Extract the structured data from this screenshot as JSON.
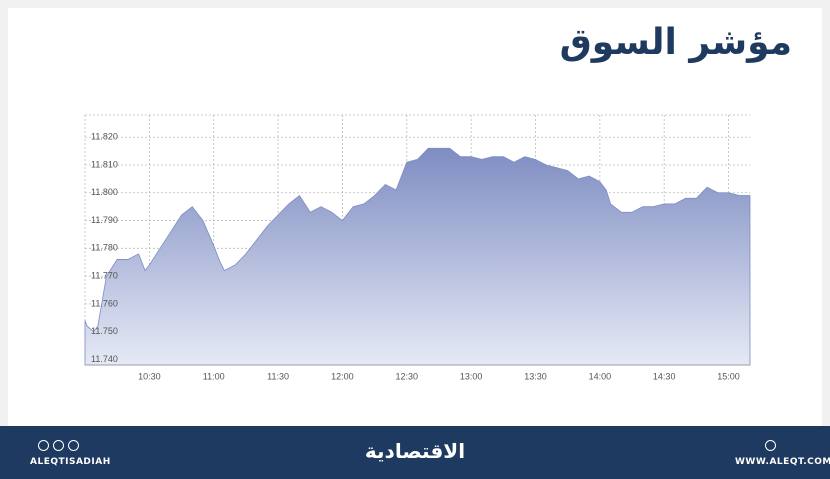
{
  "header": {
    "title": "مؤشر السوق"
  },
  "footer": {
    "handle": "ALEQTISADIAH",
    "brand": "الاقتصادية",
    "website": "WWW.ALEQT.COM"
  },
  "chart_data": {
    "type": "area",
    "color": "#7e8dc2",
    "grid": true,
    "x": [
      "10:00",
      "10:01",
      "10:04",
      "10:06",
      "10:10",
      "10:15",
      "10:20",
      "10:25",
      "10:28",
      "10:30",
      "10:35",
      "10:40",
      "10:45",
      "10:50",
      "10:55",
      "11:00",
      "11:03",
      "11:05",
      "11:10",
      "11:15",
      "11:20",
      "11:25",
      "11:30",
      "11:35",
      "11:40",
      "11:45",
      "11:50",
      "11:55",
      "12:00",
      "12:05",
      "12:10",
      "12:15",
      "12:20",
      "12:25",
      "12:30",
      "12:35",
      "12:40",
      "12:45",
      "12:50",
      "12:55",
      "13:00",
      "13:05",
      "13:10",
      "13:15",
      "13:20",
      "13:25",
      "13:30",
      "13:35",
      "13:40",
      "13:45",
      "13:50",
      "13:55",
      "14:00",
      "14:03",
      "14:05",
      "14:10",
      "14:15",
      "14:20",
      "14:25",
      "14:30",
      "14:35",
      "14:40",
      "14:45",
      "14:50",
      "14:55",
      "15:00",
      "15:05",
      "15:10"
    ],
    "values": [
      11.754,
      11.752,
      11.75,
      11.752,
      11.77,
      11.776,
      11.776,
      11.778,
      11.772,
      11.774,
      11.78,
      11.786,
      11.792,
      11.795,
      11.79,
      11.781,
      11.775,
      11.772,
      11.774,
      11.778,
      11.783,
      11.788,
      11.792,
      11.796,
      11.799,
      11.793,
      11.795,
      11.793,
      11.79,
      11.795,
      11.796,
      11.799,
      11.803,
      11.801,
      11.811,
      11.812,
      11.816,
      11.816,
      11.816,
      11.813,
      11.813,
      11.812,
      11.813,
      11.813,
      11.811,
      11.813,
      11.812,
      11.81,
      11.809,
      11.808,
      11.805,
      11.806,
      11.804,
      11.801,
      11.796,
      11.793,
      11.793,
      11.795,
      11.795,
      11.796,
      11.796,
      11.798,
      11.798,
      11.802,
      11.8,
      11.8,
      11.799,
      11.799
    ],
    "xlim": [
      "10:00",
      "15:10"
    ],
    "xticks": [
      "10:30",
      "11:00",
      "11:30",
      "12:00",
      "12:30",
      "13:00",
      "13:30",
      "14:00",
      "14:30",
      "15:00"
    ],
    "ylim": [
      11.738,
      11.828
    ],
    "yticks": [
      {
        "value": 11.74,
        "label": "11.740"
      },
      {
        "value": 11.75,
        "label": "11.750"
      },
      {
        "value": 11.76,
        "label": "11.760"
      },
      {
        "value": 11.77,
        "label": "11.770"
      },
      {
        "value": 11.78,
        "label": "11.780"
      },
      {
        "value": 11.79,
        "label": "11.790"
      },
      {
        "value": 11.8,
        "label": "11.800"
      },
      {
        "value": 11.81,
        "label": "11.810"
      },
      {
        "value": 11.82,
        "label": "11.820"
      }
    ]
  }
}
